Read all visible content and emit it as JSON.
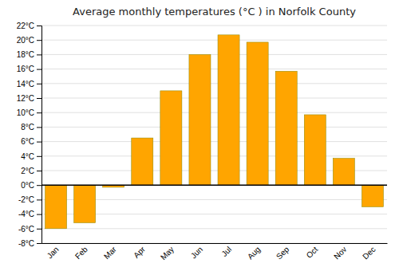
{
  "chart_data": {
    "type": "bar",
    "title": "Average monthly temperatures (°C ) in Norfolk County",
    "categories": [
      "Jan",
      "Feb",
      "Mar",
      "Apr",
      "May",
      "Jun",
      "Jul",
      "Aug",
      "Sep",
      "Oct",
      "Nov",
      "Dec"
    ],
    "values": [
      -6.0,
      -5.2,
      -0.3,
      6.5,
      13.0,
      18.0,
      20.7,
      19.7,
      15.7,
      9.7,
      3.7,
      -3.0
    ],
    "color": "#FFA500",
    "ylim": [
      -8,
      22
    ],
    "yticks": [
      {
        "value": -8,
        "label": "-8°C"
      },
      {
        "value": -6,
        "label": "-6°C"
      },
      {
        "value": -4,
        "label": "-4°C"
      },
      {
        "value": -2,
        "label": "-2°C"
      },
      {
        "value": 0,
        "label": "0°C"
      },
      {
        "value": 2,
        "label": "2°C"
      },
      {
        "value": 4,
        "label": "4°C"
      },
      {
        "value": 6,
        "label": "6°C"
      },
      {
        "value": 8,
        "label": "8°C"
      },
      {
        "value": 10,
        "label": "10°C"
      },
      {
        "value": 12,
        "label": "12°C"
      },
      {
        "value": 14,
        "label": "14°C"
      },
      {
        "value": 16,
        "label": "16°C"
      },
      {
        "value": 18,
        "label": "18°C"
      },
      {
        "value": 20,
        "label": "20°C"
      },
      {
        "value": 22,
        "label": "22°C"
      }
    ],
    "grid": true
  }
}
